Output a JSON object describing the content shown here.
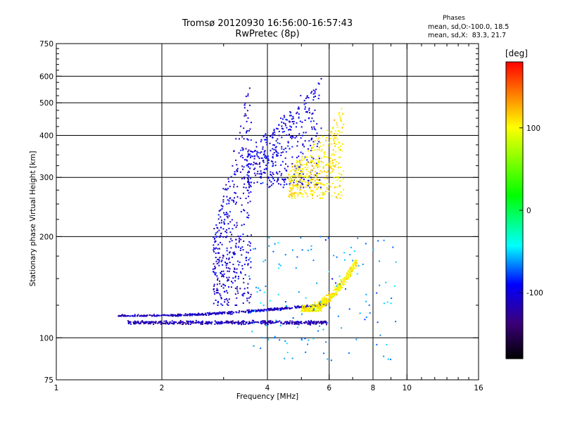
{
  "chart_data": {
    "type": "scatter",
    "title": "Tromsø 20120930 16:56:00-16:57:43",
    "subtitle": "RwPretec (8p)",
    "xlabel": "Frequency [MHz]",
    "ylabel": "Stationary phase Virtual Height [km]",
    "x_scale": "log",
    "y_scale": "log",
    "xlim": [
      1,
      16
    ],
    "ylim": [
      75,
      750
    ],
    "x_ticks": [
      1,
      2,
      4,
      6,
      8,
      10,
      16
    ],
    "y_ticks": [
      75,
      100,
      200,
      300,
      400,
      500,
      600,
      750
    ],
    "x_grid": [
      2,
      4,
      6,
      8,
      10
    ],
    "y_grid": [
      100,
      200,
      300,
      400,
      500,
      600
    ],
    "grid": true,
    "phases_panel": {
      "title": "Phases",
      "line1": "mean, sd,O:-100.0, 18.5",
      "line2": "mean, sd,X:  83.3, 21.7"
    },
    "colorbar": {
      "label": "[deg]",
      "range": [
        -180,
        180
      ],
      "ticks": [
        100,
        0,
        -100
      ],
      "colors": [
        "#ff0000",
        "#ffff00",
        "#00ff00",
        "#00ffff",
        "#0000ff",
        "#3b007a",
        "#000000"
      ]
    },
    "series": [
      {
        "label": "O-mode low trace",
        "phase": -110,
        "x_range": [
          1.5,
          5.9
        ],
        "y_range": [
          116,
          126
        ],
        "shape": "rising"
      },
      {
        "label": "O-mode lower trace",
        "phase": -115,
        "x_range": [
          1.6,
          5.9
        ],
        "y_range": [
          109,
          113
        ],
        "shape": "flat"
      },
      {
        "label": "O-mode cusp",
        "phase": -105,
        "x_range": [
          2.8,
          3.6
        ],
        "y_range": [
          125,
          600
        ],
        "shape": "cusp"
      },
      {
        "label": "O-mode F trace",
        "phase": -100,
        "x_range": [
          3.5,
          5.7
        ],
        "y_range": [
          280,
          600
        ],
        "shape": "cusp"
      },
      {
        "label": "X-mode F trace",
        "phase": 90,
        "x_range": [
          4.6,
          6.6
        ],
        "y_range": [
          260,
          480
        ],
        "shape": "cusp"
      },
      {
        "label": "X-mode E trace",
        "phase": 85,
        "x_range": [
          5.0,
          7.2
        ],
        "y_range": [
          120,
          170
        ],
        "shape": "rising"
      },
      {
        "label": "Scattered echoes",
        "phase": -60,
        "x_range": [
          3.5,
          9.5
        ],
        "y_range": [
          85,
          200
        ],
        "shape": "scatter"
      }
    ]
  }
}
